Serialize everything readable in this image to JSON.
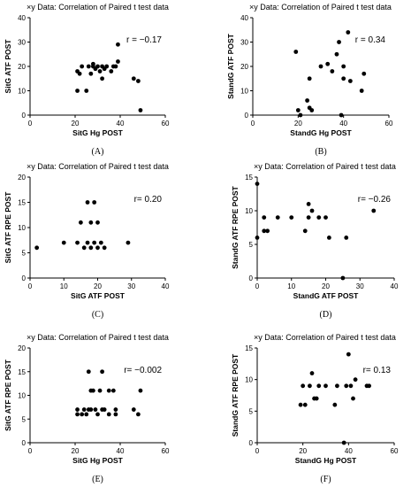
{
  "chart_data": [
    {
      "id": "A",
      "type": "scatter",
      "title": "×y Data: Correlation of Paired t test data",
      "xlabel": "SitG Hg POST",
      "ylabel": "SitG ATF POST",
      "xlim": [
        0,
        60
      ],
      "ylim": [
        0,
        40
      ],
      "xticks": [
        0,
        20,
        40,
        60
      ],
      "yticks": [
        0,
        10,
        20,
        30,
        40
      ],
      "r_label": "r = −0.17",
      "panel_label": "(A)",
      "points": [
        [
          21,
          18
        ],
        [
          21,
          10
        ],
        [
          22,
          17
        ],
        [
          23,
          20
        ],
        [
          25,
          10
        ],
        [
          26,
          20
        ],
        [
          27,
          17
        ],
        [
          28,
          20
        ],
        [
          28,
          21
        ],
        [
          29,
          19
        ],
        [
          30,
          20
        ],
        [
          31,
          18
        ],
        [
          32,
          20
        ],
        [
          32,
          15
        ],
        [
          33,
          19
        ],
        [
          34,
          20
        ],
        [
          36,
          18
        ],
        [
          37,
          20
        ],
        [
          38,
          20
        ],
        [
          39,
          22
        ],
        [
          39,
          29
        ],
        [
          46,
          15
        ],
        [
          48,
          14
        ],
        [
          49,
          2
        ]
      ]
    },
    {
      "id": "B",
      "type": "scatter",
      "title": "×y Data: Correlation of Paired t test data",
      "xlabel": "StandG Hg POST",
      "ylabel": "StandG ATF POST",
      "xlim": [
        0,
        60
      ],
      "ylim": [
        0,
        40
      ],
      "xticks": [
        0,
        20,
        40,
        60
      ],
      "yticks": [
        0,
        10,
        20,
        30,
        40
      ],
      "r_label": "r = 0.34",
      "panel_label": "(B)",
      "points": [
        [
          19,
          26
        ],
        [
          20,
          2
        ],
        [
          21,
          0
        ],
        [
          24,
          6
        ],
        [
          25,
          15
        ],
        [
          25,
          3
        ],
        [
          26,
          2
        ],
        [
          30,
          20
        ],
        [
          33,
          21
        ],
        [
          35,
          18
        ],
        [
          37,
          25
        ],
        [
          38,
          30
        ],
        [
          39,
          0
        ],
        [
          40,
          15
        ],
        [
          40,
          20
        ],
        [
          42,
          34
        ],
        [
          43,
          14
        ],
        [
          48,
          10
        ],
        [
          49,
          17
        ]
      ]
    },
    {
      "id": "C",
      "type": "scatter",
      "title": "×y Data: Correlation of Paired t test data",
      "xlabel": "SitG ATF POST",
      "ylabel": "SitG ATF RPE POST",
      "xlim": [
        0,
        40
      ],
      "ylim": [
        0,
        20
      ],
      "xticks": [
        0,
        10,
        20,
        30,
        40
      ],
      "yticks": [
        0,
        5,
        10,
        15,
        20
      ],
      "r_label": "r= 0.20",
      "panel_label": "(C)",
      "points": [
        [
          2,
          6
        ],
        [
          10,
          7
        ],
        [
          14,
          7
        ],
        [
          15,
          11
        ],
        [
          16,
          6
        ],
        [
          17,
          7
        ],
        [
          17,
          15
        ],
        [
          18,
          6
        ],
        [
          18,
          11
        ],
        [
          19,
          7
        ],
        [
          19,
          15
        ],
        [
          20,
          6
        ],
        [
          20,
          11
        ],
        [
          21,
          7
        ],
        [
          22,
          6
        ],
        [
          29,
          7
        ]
      ]
    },
    {
      "id": "D",
      "type": "scatter",
      "title": "×y Data: Correlation of Paired t test data",
      "xlabel": "StandG ATF POST",
      "ylabel": "StandG ATF RPE POST",
      "xlim": [
        0,
        40
      ],
      "ylim": [
        0,
        15
      ],
      "xticks": [
        0,
        10,
        20,
        30,
        40
      ],
      "yticks": [
        0,
        5,
        10,
        15
      ],
      "r_label": "r= −0.26",
      "panel_label": "(D)",
      "points": [
        [
          0,
          14
        ],
        [
          0,
          6
        ],
        [
          2,
          9
        ],
        [
          2,
          7
        ],
        [
          3,
          7
        ],
        [
          6,
          9
        ],
        [
          10,
          9
        ],
        [
          14,
          7
        ],
        [
          15,
          9
        ],
        [
          15,
          11
        ],
        [
          16,
          10
        ],
        [
          18,
          9
        ],
        [
          20,
          9
        ],
        [
          21,
          6
        ],
        [
          25,
          0
        ],
        [
          26,
          6
        ],
        [
          34,
          10
        ]
      ]
    },
    {
      "id": "E",
      "type": "scatter",
      "title": "×y Data: Correlation of Paired t test data",
      "xlabel": "SitG Hg POST",
      "ylabel": "SitG ATF RPE POST",
      "xlim": [
        0,
        60
      ],
      "ylim": [
        0,
        20
      ],
      "xticks": [
        0,
        20,
        40,
        60
      ],
      "yticks": [
        0,
        5,
        10,
        15,
        20
      ],
      "r_label": "r= −0.002",
      "panel_label": "(E)",
      "points": [
        [
          21,
          7
        ],
        [
          21,
          6
        ],
        [
          23,
          6
        ],
        [
          24,
          7
        ],
        [
          25,
          6
        ],
        [
          26,
          15
        ],
        [
          27,
          7
        ],
        [
          27,
          11
        ],
        [
          28,
          11
        ],
        [
          29,
          7
        ],
        [
          30,
          6
        ],
        [
          31,
          11
        ],
        [
          32,
          15
        ],
        [
          33,
          7
        ],
        [
          35,
          11
        ],
        [
          35,
          6
        ],
        [
          37,
          11
        ],
        [
          38,
          7
        ],
        [
          38,
          6
        ],
        [
          46,
          7
        ],
        [
          48,
          6
        ],
        [
          49,
          11
        ],
        [
          32,
          7
        ],
        [
          26,
          7
        ]
      ]
    },
    {
      "id": "F",
      "type": "scatter",
      "title": "×y Data: Correlation of Paired t test data",
      "xlabel": "StandG Hg POST",
      "ylabel": "StandG ATF RPE POST",
      "xlim": [
        0,
        60
      ],
      "ylim": [
        0,
        15
      ],
      "xticks": [
        0,
        20,
        40,
        60
      ],
      "yticks": [
        0,
        5,
        10,
        15
      ],
      "r_label": "r= 0.13",
      "panel_label": "(F)",
      "points": [
        [
          19,
          6
        ],
        [
          20,
          9
        ],
        [
          21,
          6
        ],
        [
          23,
          9
        ],
        [
          24,
          11
        ],
        [
          25,
          7
        ],
        [
          26,
          7
        ],
        [
          27,
          9
        ],
        [
          30,
          9
        ],
        [
          34,
          6
        ],
        [
          35,
          9
        ],
        [
          38,
          0
        ],
        [
          39,
          9
        ],
        [
          40,
          14
        ],
        [
          41,
          9
        ],
        [
          42,
          7
        ],
        [
          43,
          10
        ],
        [
          48,
          9
        ],
        [
          49,
          9
        ]
      ]
    }
  ]
}
